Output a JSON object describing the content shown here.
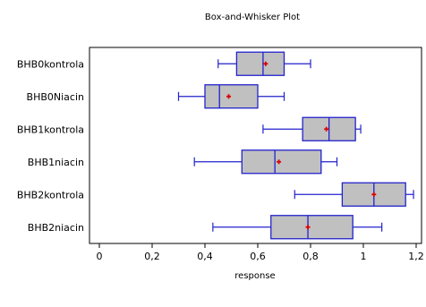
{
  "chart_data": {
    "type": "box",
    "title": "Box-and-Whisker Plot",
    "xlabel": "response",
    "ylabel": "",
    "xlim": [
      -0.04,
      1.22
    ],
    "x_ticks": [
      "0",
      "0,2",
      "0,4",
      "0,6",
      "0,8",
      "1",
      "1,2"
    ],
    "x_tick_values": [
      0,
      0.2,
      0.4,
      0.6,
      0.8,
      1.0,
      1.2
    ],
    "grid": false,
    "orientation": "horizontal",
    "box_fill": "#c0c0c0",
    "box_stroke": "#2222cc",
    "mean_color": "#dd0000",
    "categories": [
      "BHB0kontrola",
      "BHB0Niacin",
      "BHB1kontrola",
      "BHB1niacin",
      "BHB2kontrola",
      "BHB2niacin"
    ],
    "boxes": [
      {
        "min": 0.45,
        "q1": 0.52,
        "median": 0.62,
        "q3": 0.7,
        "max": 0.8,
        "mean": 0.63
      },
      {
        "min": 0.3,
        "q1": 0.4,
        "median": 0.455,
        "q3": 0.6,
        "max": 0.7,
        "mean": 0.49
      },
      {
        "min": 0.62,
        "q1": 0.77,
        "median": 0.87,
        "q3": 0.97,
        "max": 0.99,
        "mean": 0.86
      },
      {
        "min": 0.36,
        "q1": 0.54,
        "median": 0.665,
        "q3": 0.84,
        "max": 0.9,
        "mean": 0.68
      },
      {
        "min": 0.74,
        "q1": 0.92,
        "median": 1.04,
        "q3": 1.16,
        "max": 1.19,
        "mean": 1.04
      },
      {
        "min": 0.43,
        "q1": 0.65,
        "median": 0.79,
        "q3": 0.96,
        "max": 1.07,
        "mean": 0.79
      }
    ]
  }
}
